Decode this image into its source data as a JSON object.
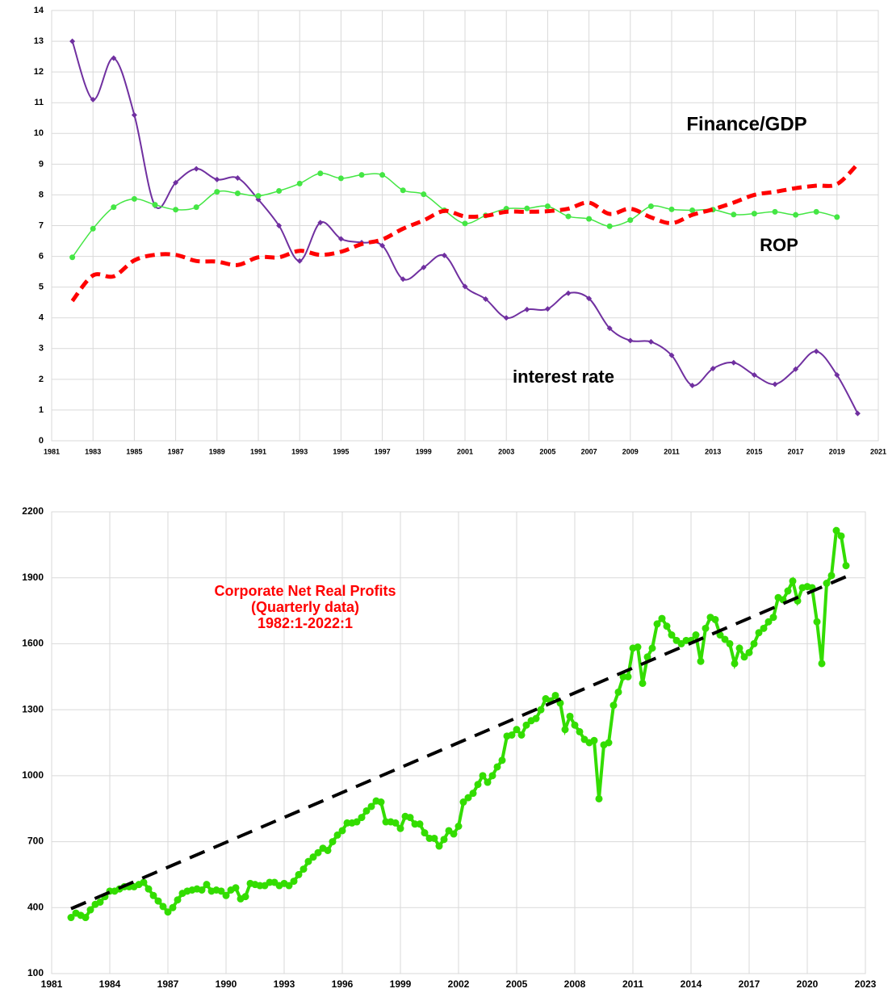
{
  "chart_data": [
    {
      "type": "line",
      "smooth": true,
      "grid": true,
      "x": [
        1982,
        1983,
        1984,
        1985,
        1986,
        1987,
        1988,
        1989,
        1990,
        1991,
        1992,
        1993,
        1994,
        1995,
        1996,
        1997,
        1998,
        1999,
        2000,
        2001,
        2002,
        2003,
        2004,
        2005,
        2006,
        2007,
        2008,
        2009,
        2010,
        2011,
        2012,
        2013,
        2014,
        2015,
        2016,
        2017,
        2018,
        2019,
        2020
      ],
      "xlim": [
        1981,
        2021
      ],
      "xticks": [
        1981,
        1983,
        1985,
        1987,
        1989,
        1991,
        1993,
        1995,
        1997,
        1999,
        2001,
        2003,
        2005,
        2007,
        2009,
        2011,
        2013,
        2015,
        2017,
        2019,
        2021
      ],
      "ylim": [
        0,
        14
      ],
      "yticks": [
        0,
        1,
        2,
        3,
        4,
        5,
        6,
        7,
        8,
        9,
        10,
        11,
        12,
        13,
        14
      ],
      "series": [
        {
          "name": "interest rate",
          "color": "#7030a0",
          "label_color": "#7030a0",
          "marker": "diamond",
          "values": [
            13.0,
            11.1,
            12.45,
            10.6,
            7.65,
            8.4,
            8.85,
            8.5,
            8.55,
            7.85,
            7.0,
            5.85,
            7.1,
            6.57,
            6.45,
            6.35,
            5.26,
            5.64,
            6.03,
            5.02,
            4.61,
            4.0,
            4.27,
            4.29,
            4.8,
            4.63,
            3.66,
            3.26,
            3.22,
            2.78,
            1.8,
            2.35,
            2.54,
            2.14,
            1.84,
            2.33,
            2.91,
            2.14,
            0.89
          ]
        },
        {
          "name": "ROP",
          "color": "#44e644",
          "label_color": "#00b050",
          "marker": "circle",
          "values": [
            5.97,
            6.9,
            7.6,
            7.87,
            7.68,
            7.52,
            7.6,
            8.1,
            8.05,
            7.97,
            8.13,
            8.37,
            8.7,
            8.54,
            8.65,
            8.65,
            8.15,
            8.02,
            7.5,
            7.07,
            7.33,
            7.55,
            7.56,
            7.63,
            7.3,
            7.22,
            6.98,
            7.18,
            7.63,
            7.53,
            7.5,
            7.52,
            7.36,
            7.39,
            7.45,
            7.35,
            7.45,
            7.28,
            null
          ]
        },
        {
          "name": "Finance/GDP",
          "color": "#ff0000",
          "label_color": "#ff0000",
          "dashed": true,
          "values": [
            4.55,
            5.38,
            5.35,
            5.87,
            6.05,
            6.05,
            5.85,
            5.83,
            5.72,
            5.97,
            5.97,
            6.18,
            6.05,
            6.15,
            6.4,
            6.55,
            6.9,
            7.17,
            7.48,
            7.3,
            7.32,
            7.45,
            7.45,
            7.47,
            7.55,
            7.75,
            7.38,
            7.55,
            7.27,
            7.08,
            7.35,
            7.53,
            7.75,
            8.0,
            8.1,
            8.22,
            8.3,
            8.35,
            9.0
          ]
        }
      ]
    },
    {
      "type": "line",
      "smooth": false,
      "grid": true,
      "title": [
        "Corporate Net Real Profits",
        "(Quarterly data)",
        "1982:1-2022:1"
      ],
      "x": [
        1982,
        1982.25,
        1982.5,
        1982.75,
        1983,
        1983.25,
        1983.5,
        1983.75,
        1984,
        1984.25,
        1984.5,
        1984.75,
        1985,
        1985.25,
        1985.5,
        1985.75,
        1986,
        1986.25,
        1986.5,
        1986.75,
        1987,
        1987.25,
        1987.5,
        1987.75,
        1988,
        1988.25,
        1988.5,
        1988.75,
        1989,
        1989.25,
        1989.5,
        1989.75,
        1990,
        1990.25,
        1990.5,
        1990.75,
        1991,
        1991.25,
        1991.5,
        1991.75,
        1992,
        1992.25,
        1992.5,
        1992.75,
        1993,
        1993.25,
        1993.5,
        1993.75,
        1994,
        1994.25,
        1994.5,
        1994.75,
        1995,
        1995.25,
        1995.5,
        1995.75,
        1996,
        1996.25,
        1996.5,
        1996.75,
        1997,
        1997.25,
        1997.5,
        1997.75,
        1998,
        1998.25,
        1998.5,
        1998.75,
        1999,
        1999.25,
        1999.5,
        1999.75,
        2000,
        2000.25,
        2000.5,
        2000.75,
        2001,
        2001.25,
        2001.5,
        2001.75,
        2002,
        2002.25,
        2002.5,
        2002.75,
        2003,
        2003.25,
        2003.5,
        2003.75,
        2004,
        2004.25,
        2004.5,
        2004.75,
        2005,
        2005.25,
        2005.5,
        2005.75,
        2006,
        2006.25,
        2006.5,
        2006.75,
        2007,
        2007.25,
        2007.5,
        2007.75,
        2008,
        2008.25,
        2008.5,
        2008.75,
        2009,
        2009.25,
        2009.5,
        2009.75,
        2010,
        2010.25,
        2010.5,
        2010.75,
        2011,
        2011.25,
        2011.5,
        2011.75,
        2012,
        2012.25,
        2012.5,
        2012.75,
        2013,
        2013.25,
        2013.5,
        2013.75,
        2014,
        2014.25,
        2014.5,
        2014.75,
        2015,
        2015.25,
        2015.5,
        2015.75,
        2016,
        2016.25,
        2016.5,
        2016.75,
        2017,
        2017.25,
        2017.5,
        2017.75,
        2018,
        2018.25,
        2018.5,
        2018.75,
        2019,
        2019.25,
        2019.5,
        2019.75,
        2020,
        2020.25,
        2020.5,
        2020.75,
        2021,
        2021.25,
        2021.5,
        2021.75,
        2022
      ],
      "xlim": [
        1981,
        2023
      ],
      "xticks": [
        1981,
        1984,
        1987,
        1990,
        1993,
        1996,
        1999,
        2002,
        2005,
        2008,
        2011,
        2014,
        2017,
        2020,
        2023
      ],
      "ylim": [
        100,
        2200
      ],
      "yticks": [
        100,
        400,
        700,
        1000,
        1300,
        1600,
        1900,
        2200
      ],
      "series": [
        {
          "color": "#33dd00",
          "marker": "circle",
          "values": [
            355,
            375,
            365,
            355,
            390,
            415,
            425,
            450,
            475,
            475,
            485,
            495,
            495,
            495,
            505,
            515,
            485,
            455,
            430,
            405,
            380,
            400,
            435,
            465,
            475,
            480,
            485,
            480,
            505,
            475,
            480,
            475,
            455,
            480,
            490,
            440,
            450,
            510,
            505,
            500,
            500,
            515,
            515,
            500,
            510,
            500,
            520,
            550,
            575,
            610,
            630,
            650,
            670,
            660,
            700,
            730,
            750,
            785,
            785,
            790,
            810,
            840,
            860,
            885,
            880,
            790,
            790,
            785,
            760,
            815,
            810,
            780,
            780,
            740,
            715,
            715,
            680,
            710,
            750,
            735,
            770,
            880,
            900,
            920,
            960,
            1000,
            970,
            1000,
            1040,
            1070,
            1180,
            1185,
            1210,
            1185,
            1230,
            1250,
            1260,
            1300,
            1350,
            1340,
            1365,
            1330,
            1210,
            1270,
            1230,
            1200,
            1165,
            1150,
            1160,
            895,
            1140,
            1150,
            1320,
            1380,
            1450,
            1450,
            1580,
            1585,
            1420,
            1540,
            1580,
            1690,
            1715,
            1680,
            1640,
            1615,
            1600,
            1615,
            1615,
            1640,
            1520,
            1670,
            1720,
            1710,
            1640,
            1620,
            1600,
            1510,
            1580,
            1540,
            1560,
            1600,
            1650,
            1670,
            1700,
            1720,
            1810,
            1800,
            1840,
            1885,
            1795,
            1855,
            1860,
            1855,
            1700,
            1510,
            1875,
            1910,
            2115,
            2090,
            1955
          ]
        },
        {
          "color": "#000000",
          "dashed": true,
          "x": [
            1982,
            2022
          ],
          "values": [
            395,
            1905
          ]
        }
      ]
    }
  ]
}
